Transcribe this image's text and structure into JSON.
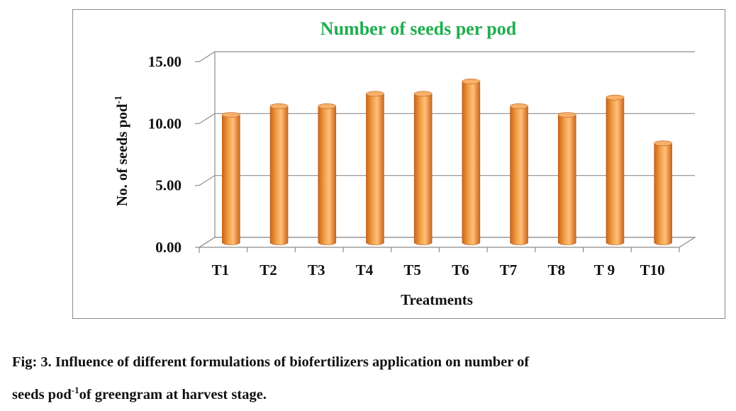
{
  "chart_data": {
    "type": "bar",
    "title": "Number of seeds per pod",
    "xlabel": "Treatments",
    "ylabel": "No. of seeds pod",
    "ylabel_superscript": "-1",
    "categories": [
      "T1",
      "T2",
      "T3",
      "T4",
      "T5",
      "T6",
      "T7",
      "T8",
      "T 9",
      "T10"
    ],
    "values": [
      10.3,
      11.0,
      11.0,
      12.0,
      12.0,
      13.0,
      11.0,
      10.3,
      11.7,
      8.0
    ],
    "ylim": [
      0,
      15
    ],
    "yticks": [
      "0.00",
      "5.00",
      "10.00",
      "15.00"
    ],
    "grid": true,
    "legend": "none",
    "bar_color": "#f59b3c",
    "title_color": "#1fae4f"
  },
  "caption": {
    "line1": "Fig: 3. Influence of different formulations of biofertilizers application on number of",
    "line2_pre": "seeds pod",
    "line2_sup": "-1",
    "line2_post": "of greengram at harvest stage."
  }
}
